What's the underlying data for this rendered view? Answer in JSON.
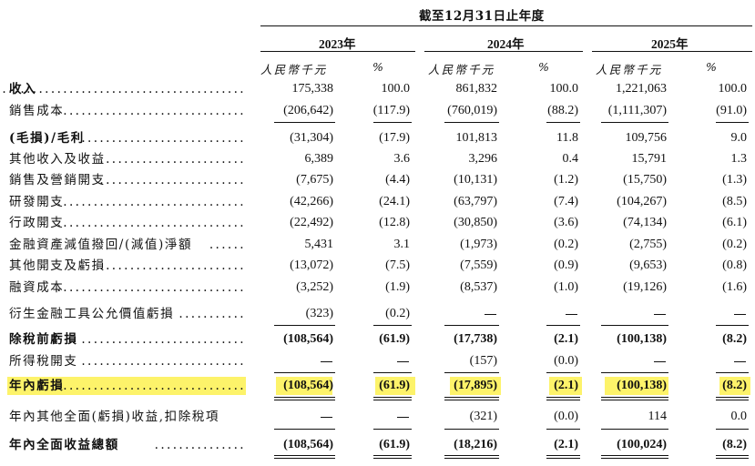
{
  "header": {
    "period": "截至12月31日止年度",
    "years": [
      "2023年",
      "2024年",
      "2025年"
    ],
    "currency_unit": "人民幣千元",
    "percent_unit": "%"
  },
  "rows": [
    {
      "label": "收入",
      "bold": true,
      "leader": ".........................................",
      "values": [
        "175,338",
        "100.0",
        "861,832",
        "100.0",
        "1,221,063",
        "100.0"
      ]
    },
    {
      "label": "銷售成本",
      "bold": false,
      "leader": "...............................",
      "values": [
        "(206,642)",
        "(117.9)",
        "(760,019)",
        "(88.2)",
        "(1,111,307)",
        "(91.0)"
      ]
    },
    {
      "label": "(毛損)/毛利",
      "bold": true,
      "leader": "...........................",
      "values": [
        "(31,304)",
        "(17.9)",
        "101,813",
        "11.8",
        "109,756",
        "9.0"
      ]
    },
    {
      "label": "其他收入及收益",
      "bold": false,
      "leader": "........................",
      "values": [
        "6,389",
        "3.6",
        "3,296",
        "0.4",
        "15,791",
        "1.3"
      ]
    },
    {
      "label": "銷售及營銷開支",
      "bold": false,
      "leader": "........................",
      "values": [
        "(7,675)",
        "(4.4)",
        "(10,131)",
        "(1.2)",
        "(15,750)",
        "(1.3)"
      ]
    },
    {
      "label": "研發開支",
      "bold": false,
      "leader": "...............................",
      "values": [
        "(42,266)",
        "(24.1)",
        "(63,797)",
        "(7.4)",
        "(104,267)",
        "(8.5)"
      ]
    },
    {
      "label": "行政開支",
      "bold": false,
      "leader": "...............................",
      "values": [
        "(22,492)",
        "(12.8)",
        "(30,850)",
        "(3.6)",
        "(74,134)",
        "(6.1)"
      ]
    },
    {
      "label": "金融資產減值撥回/(減值)淨額",
      "bold": false,
      "leader": "......",
      "values": [
        "5,431",
        "3.1",
        "(1,973)",
        "(0.2)",
        "(2,755)",
        "(0.2)"
      ]
    },
    {
      "label": "其他開支及虧損",
      "bold": false,
      "leader": "........................",
      "values": [
        "(13,072)",
        "(7.5)",
        "(7,559)",
        "(0.9)",
        "(9,653)",
        "(0.8)"
      ]
    },
    {
      "label": "融資成本",
      "bold": false,
      "leader": "...............................",
      "values": [
        "(3,252)",
        "(1.9)",
        "(8,537)",
        "(1.0)",
        "(19,126)",
        "(1.6)"
      ]
    },
    {
      "label": "衍生金融工具公允價值虧損",
      "bold": false,
      "leader": "...........",
      "values": [
        "(323)",
        "(0.2)",
        "—",
        "—",
        "—",
        "—"
      ]
    },
    {
      "label": "除稅前虧損",
      "bold": true,
      "leader": "...........................",
      "values": [
        "(108,564)",
        "(61.9)",
        "(17,738)",
        "(2.1)",
        "(100,138)",
        "(8.2)"
      ]
    },
    {
      "label": "所得稅開支",
      "bold": false,
      "leader": "...........................",
      "values": [
        "—",
        "—",
        "(157)",
        "(0.0)",
        "—",
        "—"
      ]
    },
    {
      "label": "年內虧損",
      "bold": true,
      "leader": "...............................",
      "values": [
        "(108,564)",
        "(61.9)",
        "(17,895)",
        "(2.1)",
        "(100,138)",
        "(8.2)"
      ]
    },
    {
      "label": "年內其他全面(虧損)收益,扣除稅項",
      "bold": false,
      "leader": "",
      "values": [
        "—",
        "—",
        "(321)",
        "(0.0)",
        "114",
        "0.0"
      ]
    },
    {
      "label": "年內全面收益總額",
      "bold": true,
      "leader": "...............",
      "values": [
        "(108,564)",
        "(61.9)",
        "(18,216)",
        "(2.1)",
        "(100,024)",
        "(8.2)"
      ]
    }
  ],
  "highlight": {
    "color": "#fdf36a",
    "row": "年內虧損"
  }
}
